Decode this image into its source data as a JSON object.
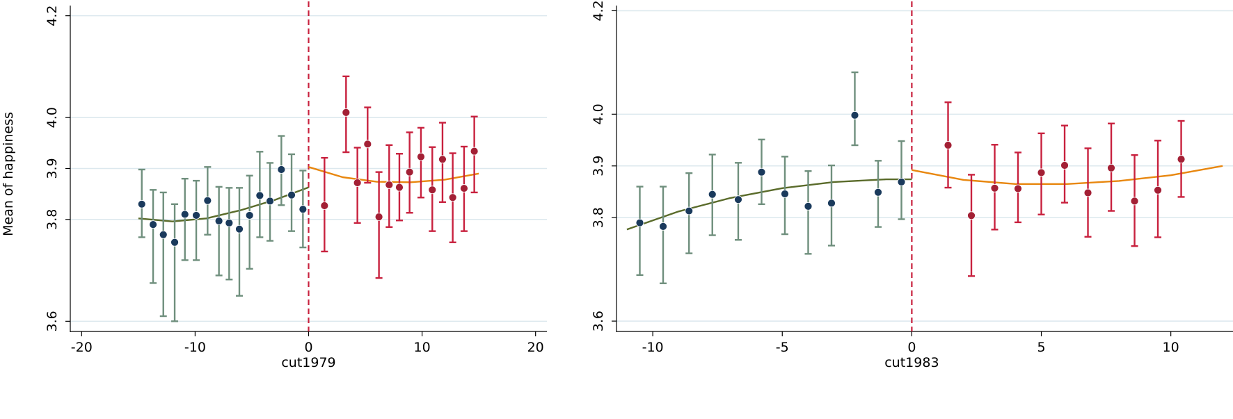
{
  "chart_data": [
    {
      "type": "scatter",
      "title": "",
      "xlabel": "cut1979",
      "ylabel": "Mean of happiness",
      "xlim": [
        -21,
        21
      ],
      "ylim": [
        3.58,
        4.22
      ],
      "xticks": [
        -20,
        -10,
        0,
        10,
        20
      ],
      "xtick_labels": [
        "-20",
        "-10",
        "0",
        "10",
        "20"
      ],
      "yticks": [
        3.6,
        3.8,
        3.9,
        4.0,
        4.2
      ],
      "ytick_labels": [
        "3.6",
        "3.8",
        "3.9",
        "4.0",
        "4.2"
      ],
      "grid": true,
      "cutoff": 0,
      "series": [
        {
          "side": "left",
          "marker_color": "#1a3a5c",
          "bar_color": "#6f8f7d",
          "fit_color": "#5a6b2a",
          "x": [
            -14.7,
            -13.7,
            -12.8,
            -11.8,
            -10.9,
            -9.9,
            -8.9,
            -7.9,
            -7.0,
            -6.1,
            -5.2,
            -4.3,
            -3.4,
            -2.4,
            -1.5,
            -0.5
          ],
          "y": [
            3.83,
            3.79,
            3.77,
            3.755,
            3.81,
            3.808,
            3.837,
            3.797,
            3.793,
            3.781,
            3.808,
            3.847,
            3.836,
            3.898,
            3.848,
            3.82
          ],
          "ci_low": [
            3.765,
            3.675,
            3.61,
            3.6,
            3.72,
            3.72,
            3.77,
            3.69,
            3.682,
            3.65,
            3.703,
            3.765,
            3.758,
            3.828,
            3.777,
            3.745
          ],
          "ci_high": [
            3.898,
            3.858,
            3.853,
            3.83,
            3.88,
            3.876,
            3.903,
            3.864,
            3.862,
            3.862,
            3.886,
            3.933,
            3.911,
            3.964,
            3.928,
            3.896
          ],
          "fit_x": [
            -15,
            -12,
            -9,
            -6,
            -3,
            0
          ],
          "fit_y": [
            3.802,
            3.796,
            3.802,
            3.818,
            3.838,
            3.863
          ]
        },
        {
          "side": "right",
          "marker_color": "#a32035",
          "bar_color": "#c8213e",
          "fit_color": "#e8870f",
          "x": [
            1.4,
            3.3,
            4.3,
            5.2,
            6.2,
            7.1,
            8.0,
            8.9,
            9.9,
            10.9,
            11.8,
            12.7,
            13.7,
            14.6
          ],
          "y": [
            3.827,
            4.01,
            3.872,
            3.948,
            3.805,
            3.868,
            3.863,
            3.893,
            3.923,
            3.858,
            3.918,
            3.843,
            3.861,
            3.934
          ],
          "ci_low": [
            3.737,
            3.932,
            3.793,
            3.872,
            3.685,
            3.785,
            3.798,
            3.813,
            3.843,
            3.777,
            3.834,
            3.755,
            3.777,
            3.853
          ],
          "ci_high": [
            3.921,
            4.081,
            3.941,
            4.02,
            3.893,
            3.946,
            3.929,
            3.971,
            3.98,
            3.942,
            3.99,
            3.93,
            3.943,
            4.002
          ],
          "fit_x": [
            0,
            3,
            6,
            9,
            12,
            15
          ],
          "fit_y": [
            3.903,
            3.883,
            3.874,
            3.873,
            3.878,
            3.89
          ]
        }
      ]
    },
    {
      "type": "scatter",
      "title": "",
      "xlabel": "cut1983",
      "ylabel": "",
      "xlim": [
        -11.4,
        12.4
      ],
      "ylim": [
        3.58,
        4.21
      ],
      "xticks": [
        -10,
        -5,
        0,
        5,
        10
      ],
      "xtick_labels": [
        "-10",
        "-5",
        "0",
        "5",
        "10"
      ],
      "yticks": [
        3.6,
        3.8,
        3.9,
        4.0,
        4.2
      ],
      "ytick_labels": [
        "3.6",
        "3.8",
        "3.9",
        "4.0",
        "4.2"
      ],
      "grid": true,
      "cutoff": 0,
      "series": [
        {
          "side": "left",
          "marker_color": "#1a3a5c",
          "bar_color": "#6f8f7d",
          "fit_color": "#5a6b2a",
          "x": [
            -10.5,
            -9.6,
            -8.6,
            -7.7,
            -6.7,
            -5.8,
            -4.9,
            -4.0,
            -3.1,
            -2.2,
            -1.3,
            -0.4
          ],
          "y": [
            3.79,
            3.783,
            3.813,
            3.845,
            3.835,
            3.888,
            3.846,
            3.822,
            3.828,
            3.998,
            3.849,
            3.869
          ],
          "ci_low": [
            3.689,
            3.673,
            3.731,
            3.766,
            3.757,
            3.826,
            3.768,
            3.73,
            3.746,
            3.94,
            3.782,
            3.797
          ],
          "ci_high": [
            3.86,
            3.86,
            3.886,
            3.922,
            3.906,
            3.951,
            3.918,
            3.89,
            3.901,
            4.081,
            3.91,
            3.948
          ],
          "fit_x": [
            -11,
            -9,
            -7,
            -5,
            -3,
            -1,
            0
          ],
          "fit_y": [
            3.777,
            3.812,
            3.838,
            3.857,
            3.869,
            3.874,
            3.874
          ]
        },
        {
          "side": "right",
          "marker_color": "#a32035",
          "bar_color": "#c8213e",
          "fit_color": "#e8870f",
          "x": [
            1.4,
            2.3,
            3.2,
            4.1,
            5.0,
            5.9,
            6.8,
            7.7,
            8.6,
            9.5,
            10.4
          ],
          "y": [
            3.94,
            3.804,
            3.857,
            3.856,
            3.887,
            3.901,
            3.848,
            3.896,
            3.832,
            3.853,
            3.913
          ],
          "ci_low": [
            3.858,
            3.687,
            3.777,
            3.791,
            3.806,
            3.829,
            3.763,
            3.813,
            3.745,
            3.762,
            3.84
          ],
          "ci_high": [
            4.023,
            3.883,
            3.941,
            3.926,
            3.963,
            3.978,
            3.934,
            3.982,
            3.921,
            3.949,
            3.987
          ],
          "fit_x": [
            0,
            2,
            4,
            6,
            8,
            10,
            12
          ],
          "fit_y": [
            3.892,
            3.873,
            3.865,
            3.865,
            3.871,
            3.882,
            3.9
          ]
        }
      ]
    }
  ]
}
